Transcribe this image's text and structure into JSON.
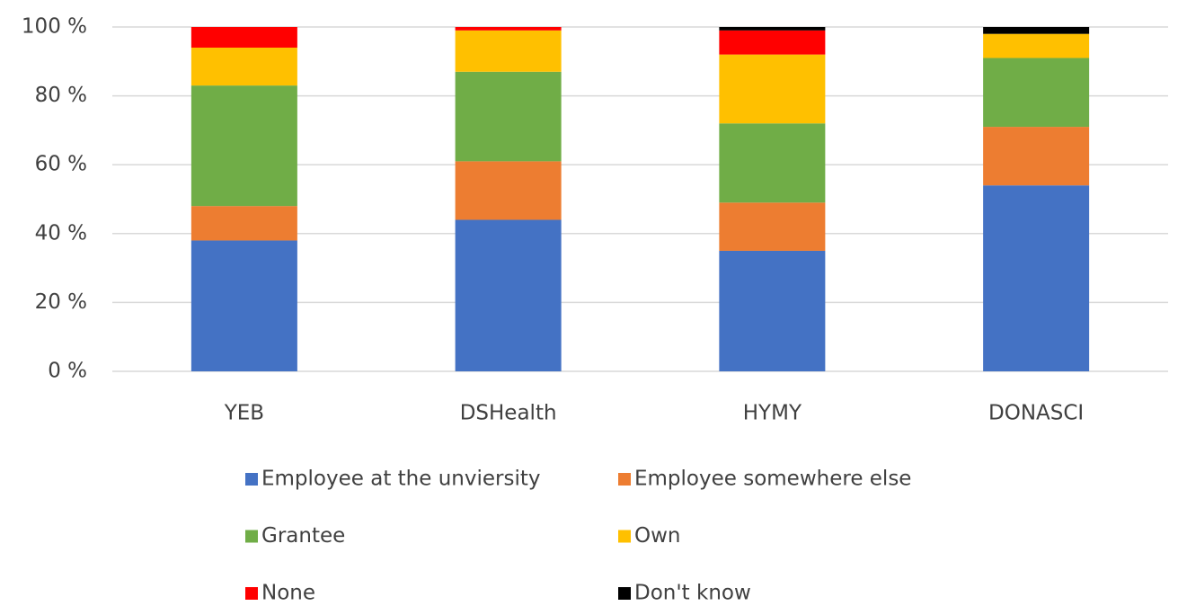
{
  "chart_data": {
    "type": "stacked_bar",
    "categories": [
      "YEB",
      "DSHealth",
      "HYMY",
      "DONASCI"
    ],
    "series": [
      {
        "name": "Employee at the unviersity",
        "color": "#4472c4",
        "values": [
          38,
          44,
          35,
          54
        ]
      },
      {
        "name": "Employee somewhere else",
        "color": "#ed7d31",
        "values": [
          10,
          17,
          14,
          17
        ]
      },
      {
        "name": "Grantee",
        "color": "#70ad47",
        "values": [
          35,
          26,
          23,
          20
        ]
      },
      {
        "name": "Own",
        "color": "#ffc000",
        "values": [
          11,
          12,
          20,
          7
        ]
      },
      {
        "name": "None",
        "color": "#ff0000",
        "values": [
          6,
          1,
          7,
          0
        ]
      },
      {
        "name": "Don't know",
        "color": "#000000",
        "values": [
          0,
          0,
          1,
          2
        ]
      }
    ],
    "ylim": [
      0,
      100
    ],
    "yticks": [
      {
        "value": 0,
        "label": "0 %"
      },
      {
        "value": 20,
        "label": "20 %"
      },
      {
        "value": 40,
        "label": "40 %"
      },
      {
        "value": 60,
        "label": "60 %"
      },
      {
        "value": 80,
        "label": "80 %"
      },
      {
        "value": 100,
        "label": "100 %"
      }
    ],
    "grid": true,
    "legend": "bottom"
  }
}
